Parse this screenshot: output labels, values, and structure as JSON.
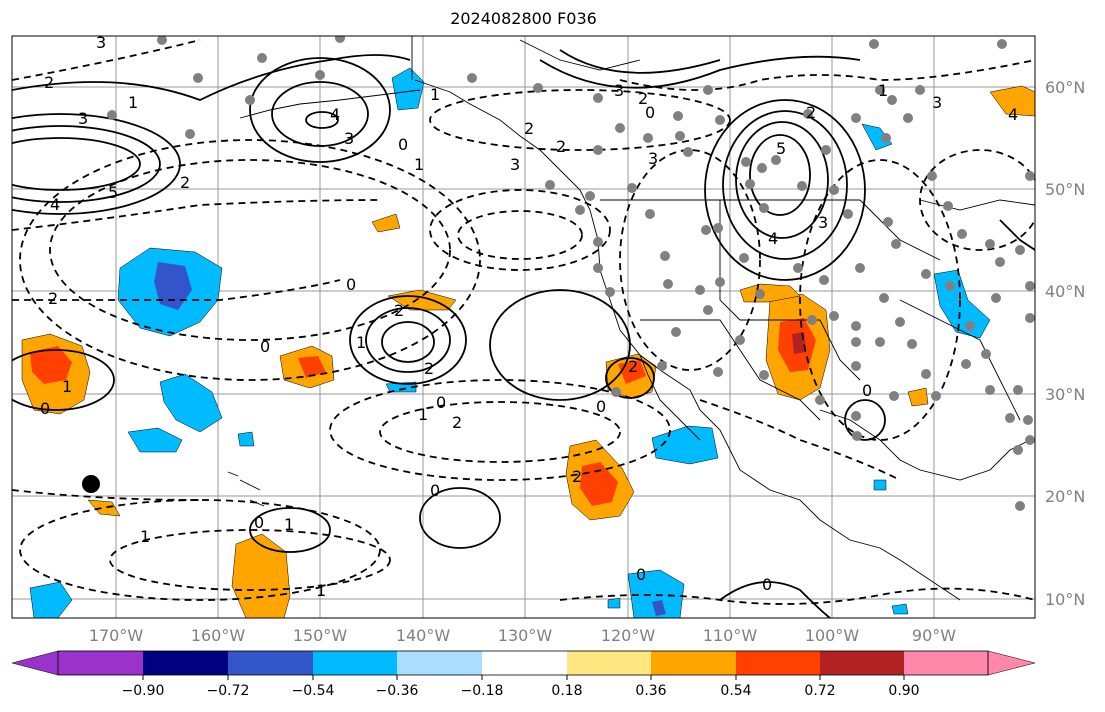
{
  "title": "2024082800 F036",
  "lat_labels": [
    "60°N",
    "50°N",
    "40°N",
    "30°N",
    "20°N",
    "10°N"
  ],
  "lon_labels": [
    "170°W",
    "160°W",
    "150°W",
    "140°W",
    "130°W",
    "120°W",
    "110°W",
    "100°W",
    "90°W"
  ],
  "colorbar": {
    "tick_labels": [
      "−0.90",
      "−0.72",
      "−0.54",
      "−0.36",
      "−0.18",
      "0.18",
      "0.36",
      "0.54",
      "0.72",
      "0.90"
    ],
    "colors": [
      "#9933cc",
      "#000080",
      "#3355cc",
      "#00bbff",
      "#aaddff",
      "#ffffff",
      "#ffe680",
      "#ffa500",
      "#ff4000",
      "#b22222",
      "#ff88aa"
    ]
  },
  "contour_labels": [
    "3",
    "2",
    "1",
    "3",
    "4",
    "5",
    "3",
    "4",
    "2",
    "3",
    "2",
    "1",
    "0",
    "1",
    "0",
    "2",
    "3",
    "2",
    "3",
    "5",
    "4",
    "2",
    "3",
    "1",
    "0",
    "2",
    "2",
    "0",
    "1",
    "0",
    "2",
    "0",
    "1",
    "2",
    "0",
    "1",
    "1",
    "0",
    "0",
    "0",
    "2",
    "0",
    "1",
    "1",
    "2",
    "0",
    "3",
    "4"
  ],
  "colors": {
    "positive_fill": "#ffa500",
    "strong_positive": "#ff4000",
    "negative_fill": "#00bbff",
    "strong_negative": "#3355cc",
    "station_dot": "#808080",
    "marker_dot": "#000000"
  }
}
